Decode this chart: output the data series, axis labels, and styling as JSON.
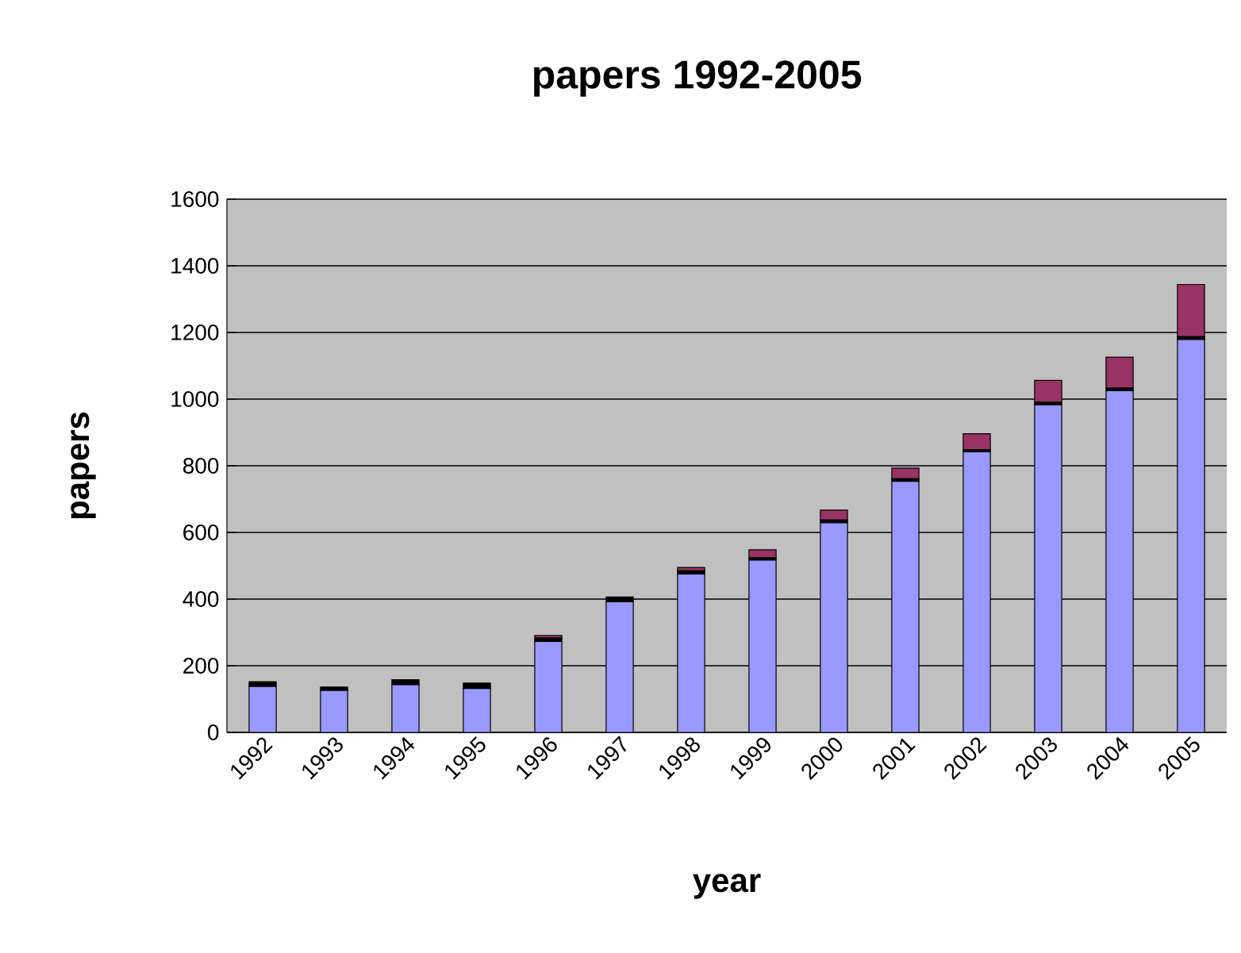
{
  "chart_data": {
    "type": "bar",
    "stacked": true,
    "title": "papers 1992-2005",
    "xlabel": "year",
    "ylabel": "papers",
    "categories": [
      "1992",
      "1993",
      "1994",
      "1995",
      "1996",
      "1997",
      "1998",
      "1999",
      "2000",
      "2001",
      "2002",
      "2003",
      "2004",
      "2005"
    ],
    "series": [
      {
        "color": "#9999ff",
        "values": [
          138,
          126,
          143,
          132,
          273,
          392,
          475,
          517,
          629,
          753,
          842,
          983,
          1025,
          1179
        ]
      },
      {
        "color": "#000000",
        "values": [
          14,
          10,
          15,
          16,
          10,
          14,
          10,
          7,
          8,
          8,
          6,
          8,
          8,
          8
        ]
      },
      {
        "color": "#993366",
        "values": [
          0,
          0,
          0,
          0,
          8,
          0,
          10,
          24,
          30,
          32,
          48,
          65,
          93,
          157
        ]
      }
    ],
    "ylim": [
      0,
      1600
    ],
    "yticks": [
      0,
      200,
      400,
      600,
      800,
      1000,
      1200,
      1400,
      1600
    ],
    "grid": "y"
  }
}
